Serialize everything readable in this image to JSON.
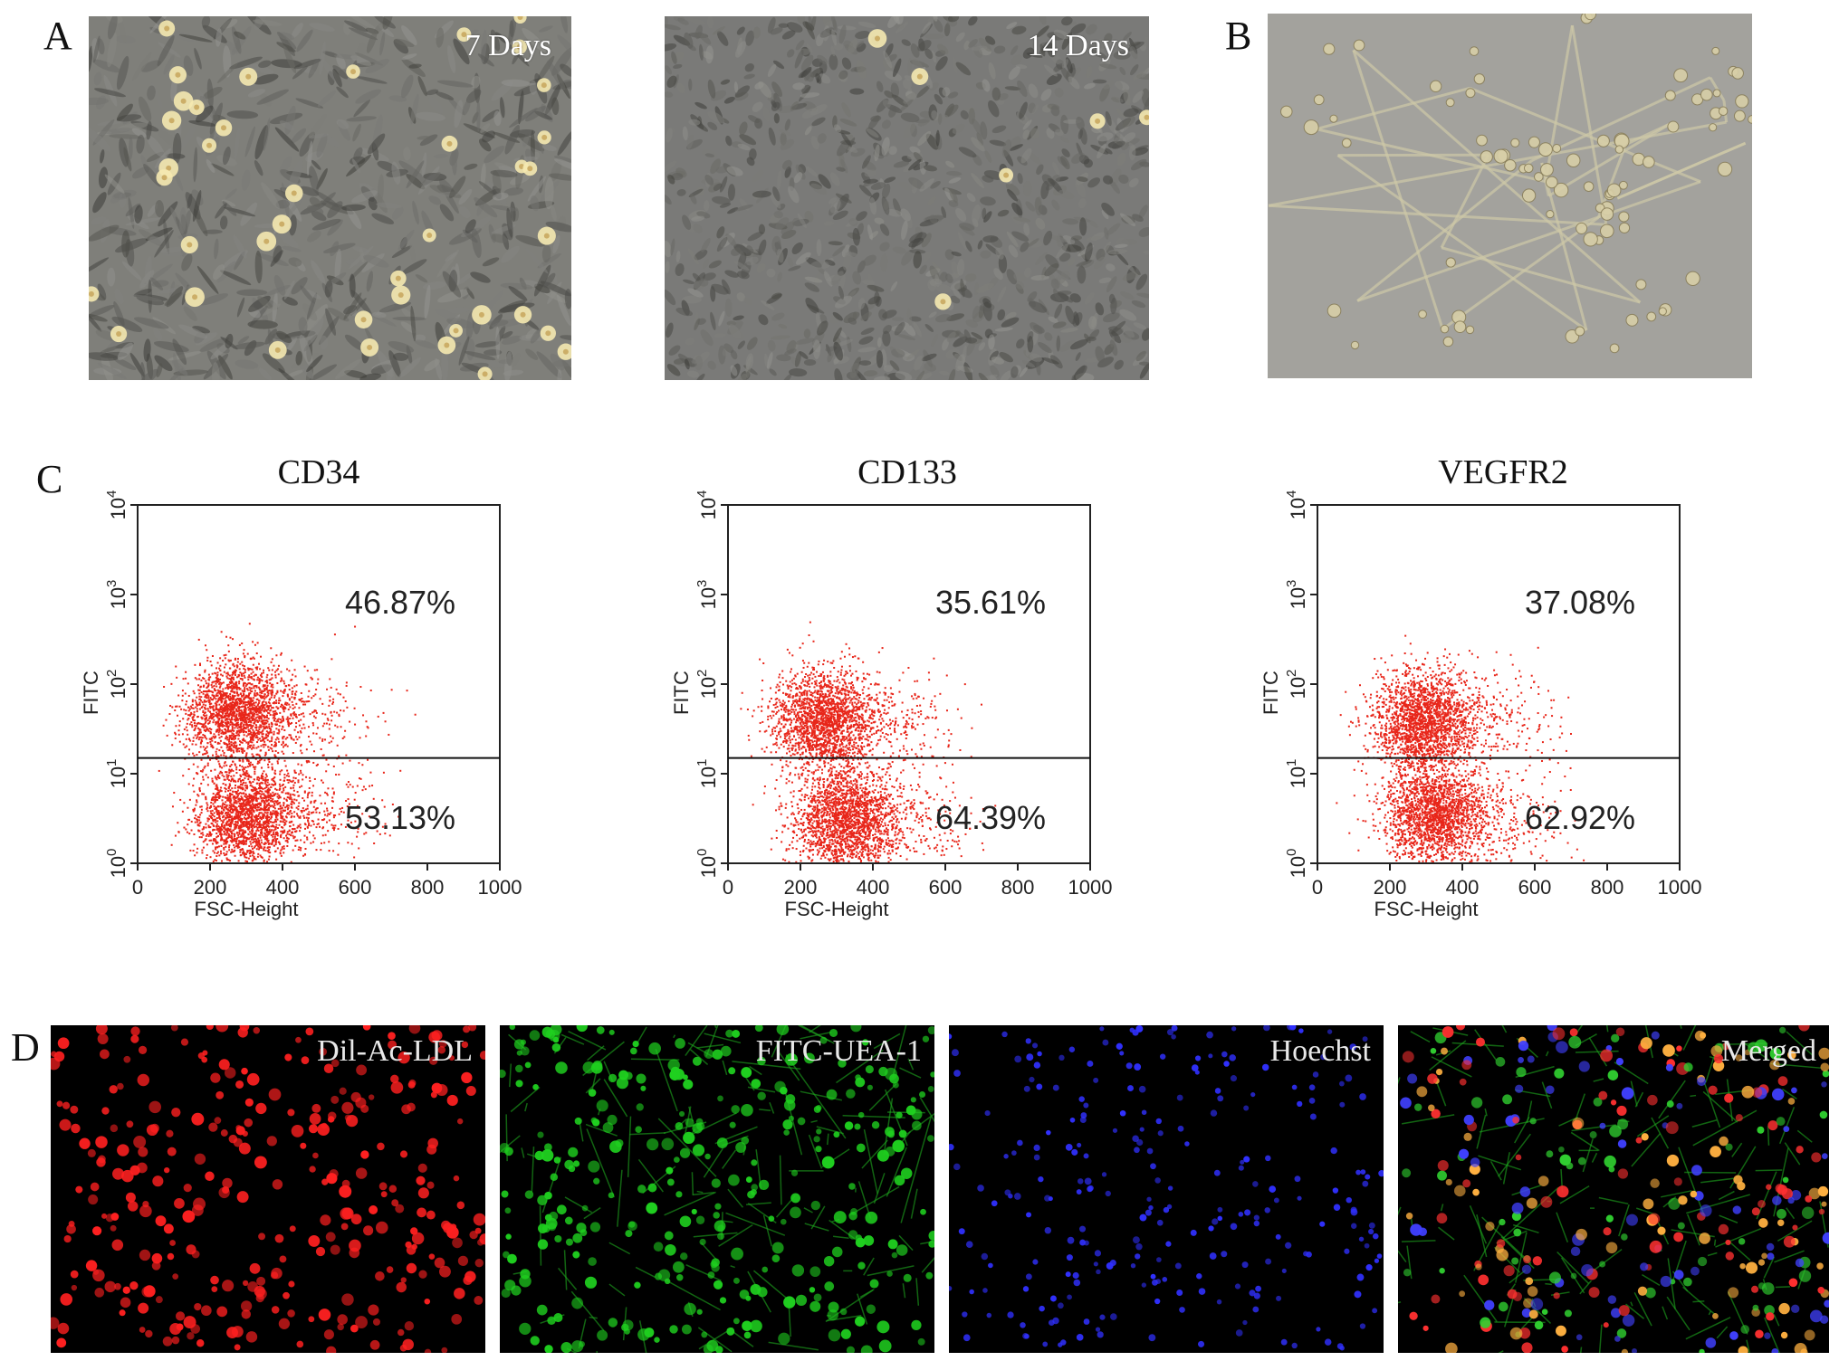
{
  "panels": {
    "A": {
      "letter": "A",
      "images": [
        {
          "label": "7 Days"
        },
        {
          "label": "14 Days"
        }
      ]
    },
    "B": {
      "letter": "B"
    },
    "C": {
      "letter": "C"
    },
    "D": {
      "letter": "D",
      "images": [
        {
          "label": "Dil-Ac-LDL",
          "color": "#e01818"
        },
        {
          "label": "FITC-UEA-1",
          "color": "#22c022"
        },
        {
          "label": "Hoechst",
          "color": "#2a2aff"
        },
        {
          "label": "Merged",
          "color": "#ffffff"
        }
      ]
    }
  },
  "chart_data": [
    {
      "type": "scatter",
      "title": "CD34",
      "xlabel": "FSC-Height",
      "ylabel": "FITC",
      "xlim": [
        0,
        1000
      ],
      "ylim_log10": [
        0,
        4
      ],
      "x_ticks": [
        "0",
        "200",
        "400",
        "600",
        "800",
        "1000"
      ],
      "y_tick_exponents": [
        "0",
        "1",
        "2",
        "3",
        "4"
      ],
      "gate_y": 15,
      "upper_pct": "46.87%",
      "lower_pct": "53.13%",
      "clusters": [
        {
          "x": 270,
          "y": 50
        },
        {
          "x": 300,
          "y": 3.5
        }
      ],
      "point_color": "#e8261a"
    },
    {
      "type": "scatter",
      "title": "CD133",
      "xlabel": "FSC-Height",
      "ylabel": "FITC",
      "xlim": [
        0,
        1000
      ],
      "ylim_log10": [
        0,
        4
      ],
      "x_ticks": [
        "0",
        "200",
        "400",
        "600",
        "800",
        "1000"
      ],
      "y_tick_exponents": [
        "0",
        "1",
        "2",
        "3",
        "4"
      ],
      "gate_y": 15,
      "upper_pct": "35.61%",
      "lower_pct": "64.39%",
      "clusters": [
        {
          "x": 260,
          "y": 40
        },
        {
          "x": 320,
          "y": 3
        }
      ],
      "point_color": "#e8261a"
    },
    {
      "type": "scatter",
      "title": "VEGFR2",
      "xlabel": "FSC-Height",
      "ylabel": "FITC",
      "xlim": [
        0,
        1000
      ],
      "ylim_log10": [
        0,
        4
      ],
      "x_ticks": [
        "0",
        "200",
        "400",
        "600",
        "800",
        "1000"
      ],
      "y_tick_exponents": [
        "0",
        "1",
        "2",
        "3",
        "4"
      ],
      "gate_y": 15,
      "upper_pct": "37.08%",
      "lower_pct": "62.92%",
      "clusters": [
        {
          "x": 290,
          "y": 40
        },
        {
          "x": 320,
          "y": 3.5
        }
      ],
      "point_color": "#e8261a"
    }
  ]
}
